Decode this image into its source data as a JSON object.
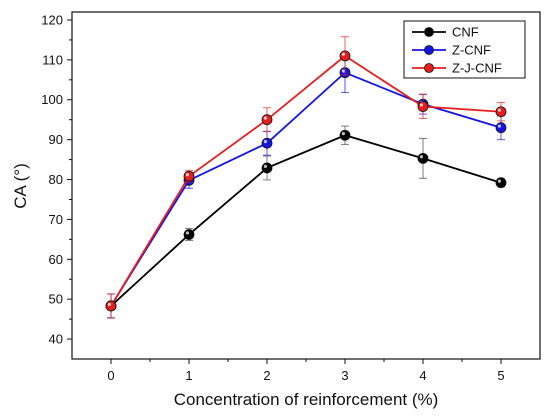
{
  "chart_data": {
    "type": "line",
    "title": "",
    "xlabel": "Concentration of reinforcement (%)",
    "ylabel": "CA (°)",
    "x": [
      0,
      1,
      2,
      3,
      4,
      5
    ],
    "xlim": [
      -0.5,
      5.5
    ],
    "ylim": [
      35,
      122
    ],
    "xticks": [
      0,
      1,
      2,
      3,
      4,
      5
    ],
    "yticks": [
      40,
      50,
      60,
      70,
      80,
      90,
      100,
      110,
      120
    ],
    "grid": false,
    "legend_position": "top-right",
    "series": [
      {
        "name": "CNF",
        "color": "#000000",
        "values": [
          48.3,
          66.2,
          82.9,
          91.1,
          85.3,
          79.2
        ],
        "errors": [
          3.0,
          1.5,
          3.0,
          2.3,
          5.0,
          1.0
        ]
      },
      {
        "name": "Z-CNF",
        "color": "#1414e6",
        "values": [
          48.3,
          79.8,
          89.1,
          106.8,
          98.9,
          93.0
        ],
        "errors": [
          3.0,
          2.0,
          3.0,
          5.0,
          2.5,
          3.0
        ]
      },
      {
        "name": "Z-J-CNF",
        "color": "#e61e1e",
        "values": [
          48.3,
          80.8,
          95.0,
          111.0,
          98.3,
          97.0
        ],
        "errors": [
          3.0,
          1.5,
          3.0,
          4.8,
          3.0,
          2.3
        ]
      }
    ]
  }
}
